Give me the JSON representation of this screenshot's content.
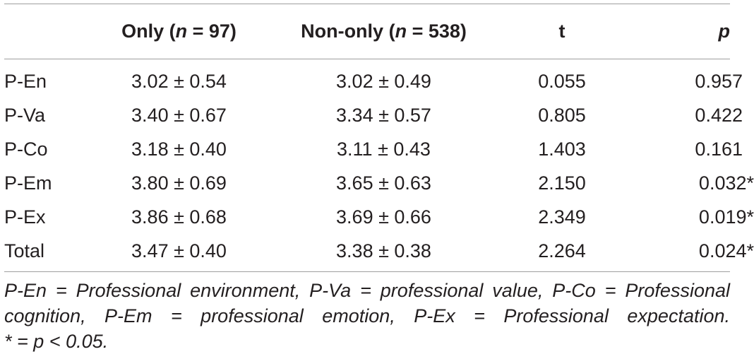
{
  "table": {
    "headers": {
      "col0": "",
      "only_prefix": "Only (",
      "only_n": "n",
      "only_suffix": " = 97)",
      "nononly_prefix": "Non-only (",
      "nononly_n": "n",
      "nononly_suffix": " = 538)",
      "t": "t",
      "p": "p"
    },
    "rows": [
      {
        "label": "P-En",
        "only": "3.02 ± 0.54",
        "nononly": "3.02 ± 0.49",
        "t": "0.055",
        "p": "0.957"
      },
      {
        "label": "P-Va",
        "only": "3.40 ± 0.67",
        "nononly": "3.34 ± 0.57",
        "t": "0.805",
        "p": "0.422"
      },
      {
        "label": "P-Co",
        "only": "3.18 ± 0.40",
        "nononly": "3.11 ± 0.43",
        "t": "1.403",
        "p": "0.161"
      },
      {
        "label": "P-Em",
        "only": "3.80 ± 0.69",
        "nononly": "3.65 ± 0.63",
        "t": "2.150",
        "p": "0.032*"
      },
      {
        "label": "P-Ex",
        "only": "3.86 ± 0.68",
        "nononly": "3.69 ± 0.66",
        "t": "2.349",
        "p": "0.019*"
      },
      {
        "label": "Total",
        "only": "3.47 ± 0.40",
        "nononly": "3.38 ± 0.38",
        "t": "2.264",
        "p": "0.024*"
      }
    ]
  },
  "footnote": {
    "line1": "P-En = Professional environment, P-Va = professional value, P-Co = Professional",
    "line2": "cognition, P-Em = professional emotion, P-Ex = Professional expectation.",
    "line3": "* = p < 0.05."
  }
}
